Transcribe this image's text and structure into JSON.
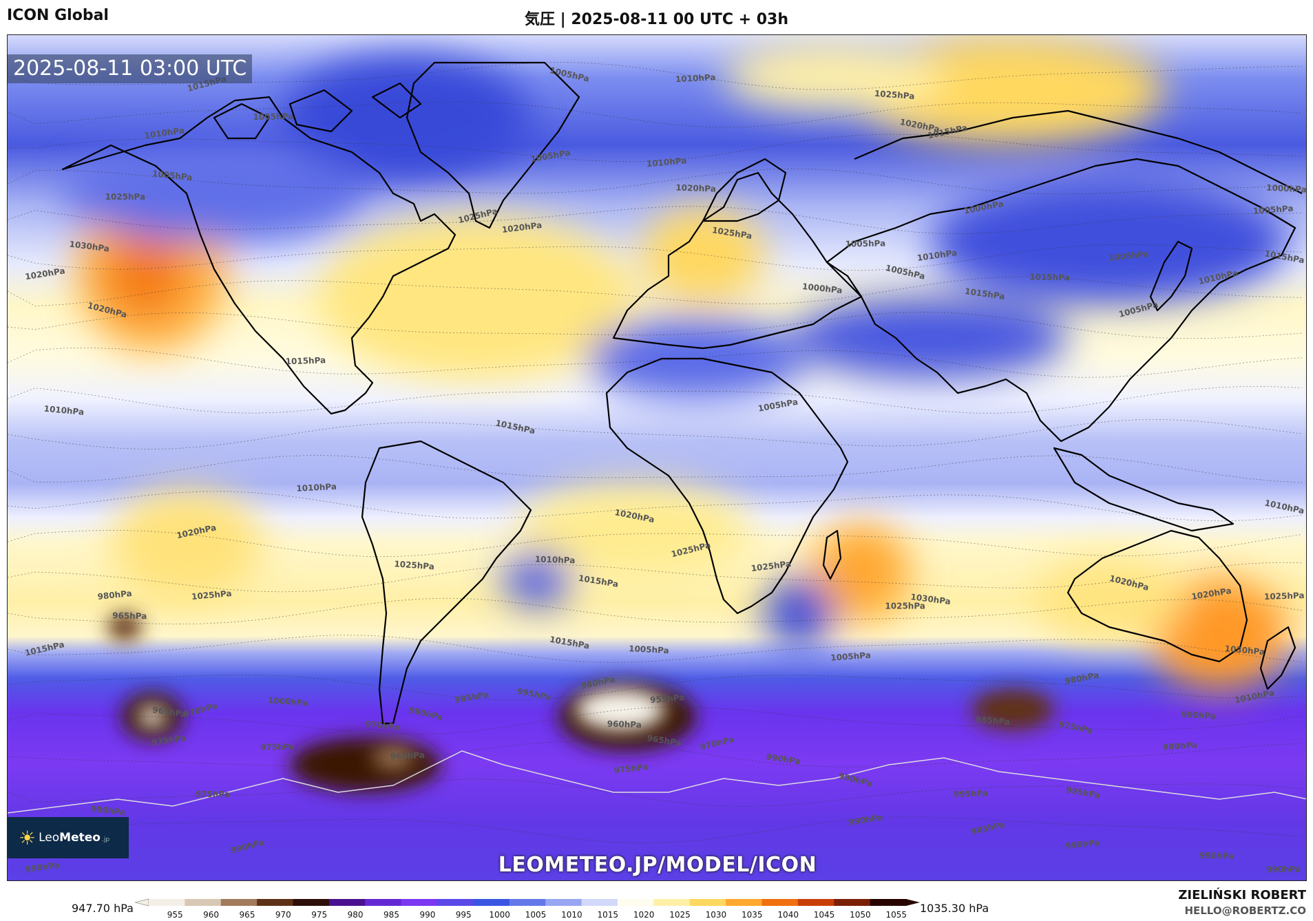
{
  "header": {
    "model_name": "ICON Global",
    "title": "気圧 | 2025-08-11 00 UTC + 03h"
  },
  "map": {
    "timestamp": "2025-08-11 03:00 UTC",
    "site_url": "LEOMETEO.JP/MODEL/ICON",
    "logo": {
      "brand_light": "Leo",
      "brand_bold": "Meteo",
      "suffix": ".jp",
      "icon": "sun-icon"
    },
    "isobar_labels": [
      {
        "text": "1015hPa",
        "lon": -130,
        "lat": 78
      },
      {
        "text": "1010hPa",
        "lon": -142,
        "lat": 68
      },
      {
        "text": "1005hPa",
        "lon": -112,
        "lat": 72
      },
      {
        "text": "1005hPa",
        "lon": -140,
        "lat": 60
      },
      {
        "text": "1005hPa",
        "lon": -30,
        "lat": 82
      },
      {
        "text": "1005hPa",
        "lon": -35,
        "lat": 63
      },
      {
        "text": "1010hPa",
        "lon": 5,
        "lat": 80
      },
      {
        "text": "1025hPa",
        "lon": 60,
        "lat": 77
      },
      {
        "text": "1020hPa",
        "lon": 67,
        "lat": 71
      },
      {
        "text": "1015hPa",
        "lon": 75,
        "lat": 68
      },
      {
        "text": "1010hPa",
        "lon": -3,
        "lat": 62
      },
      {
        "text": "1020hPa",
        "lon": 5,
        "lat": 57
      },
      {
        "text": "1025hPa",
        "lon": 15,
        "lat": 48
      },
      {
        "text": "1025hPa",
        "lon": -55,
        "lat": 50
      },
      {
        "text": "1020hPa",
        "lon": -43,
        "lat": 48
      },
      {
        "text": "1025hPa",
        "lon": -153,
        "lat": 55
      },
      {
        "text": "1030hPa",
        "lon": -163,
        "lat": 45
      },
      {
        "text": "1020hPa",
        "lon": -158,
        "lat": 32
      },
      {
        "text": "1020hPa",
        "lon": -175,
        "lat": 38
      },
      {
        "text": "1015hPa",
        "lon": -103,
        "lat": 20
      },
      {
        "text": "1010hPa",
        "lon": -170,
        "lat": 10
      },
      {
        "text": "1015hPa",
        "lon": -45,
        "lat": 7
      },
      {
        "text": "1000hPa",
        "lon": 85,
        "lat": 52
      },
      {
        "text": "1005hPa",
        "lon": 165,
        "lat": 52
      },
      {
        "text": "1000hPa",
        "lon": 178,
        "lat": 57
      },
      {
        "text": "1015hPa",
        "lon": 168,
        "lat": 43
      },
      {
        "text": "1010hPa",
        "lon": 150,
        "lat": 37
      },
      {
        "text": "1005hPa",
        "lon": 125,
        "lat": 42
      },
      {
        "text": "1015hPa",
        "lon": 103,
        "lat": 38
      },
      {
        "text": "1015hPa",
        "lon": 85,
        "lat": 35
      },
      {
        "text": "1005hPa",
        "lon": 128,
        "lat": 30
      },
      {
        "text": "1010hPa",
        "lon": 72,
        "lat": 42
      },
      {
        "text": "1005hPa",
        "lon": 52,
        "lat": 45
      },
      {
        "text": "1000hPa",
        "lon": 40,
        "lat": 36
      },
      {
        "text": "1005hPa",
        "lon": 63,
        "lat": 40
      },
      {
        "text": "1005hPa",
        "lon": 28,
        "lat": 10
      },
      {
        "text": "1010hPa",
        "lon": -100,
        "lat": -7
      },
      {
        "text": "1025hPa",
        "lon": -73,
        "lat": -23
      },
      {
        "text": "1020hPa",
        "lon": -12,
        "lat": -12
      },
      {
        "text": "1020hPa",
        "lon": -133,
        "lat": -17
      },
      {
        "text": "1025hPa",
        "lon": -129,
        "lat": -30
      },
      {
        "text": "1010hPa",
        "lon": -34,
        "lat": -22
      },
      {
        "text": "1015hPa",
        "lon": -22,
        "lat": -26
      },
      {
        "text": "1025hPa",
        "lon": 4,
        "lat": -21
      },
      {
        "text": "1025hPa",
        "lon": 26,
        "lat": -24
      },
      {
        "text": "1025hPa",
        "lon": 63,
        "lat": -32
      },
      {
        "text": "1030hPa",
        "lon": 70,
        "lat": -30
      },
      {
        "text": "1020hPa",
        "lon": 125,
        "lat": -26
      },
      {
        "text": "1020hPa",
        "lon": 148,
        "lat": -30
      },
      {
        "text": "1025hPa",
        "lon": 168,
        "lat": -30
      },
      {
        "text": "1030hPa",
        "lon": 157,
        "lat": -41
      },
      {
        "text": "1010hPa",
        "lon": 168,
        "lat": -10
      },
      {
        "text": "1010hPa",
        "lon": 160,
        "lat": -52
      },
      {
        "text": "1005hPa",
        "lon": 48,
        "lat": -43
      },
      {
        "text": "1005hPa",
        "lon": -8,
        "lat": -41
      },
      {
        "text": "1015hPa",
        "lon": -30,
        "lat": -39
      },
      {
        "text": "1015hPa",
        "lon": -175,
        "lat": -42
      },
      {
        "text": "980hPa",
        "lon": -155,
        "lat": -30
      },
      {
        "text": "965hPa",
        "lon": -151,
        "lat": -34
      },
      {
        "text": "965hPa",
        "lon": -140,
        "lat": -54
      },
      {
        "text": "970hPa",
        "lon": -131,
        "lat": -55
      },
      {
        "text": "975hPa",
        "lon": -140,
        "lat": -61
      },
      {
        "text": "975hPa",
        "lon": -110,
        "lat": -62
      },
      {
        "text": "970hPa",
        "lon": -81,
        "lat": -57
      },
      {
        "text": "980hPa",
        "lon": -69,
        "lat": -54
      },
      {
        "text": "985hPa",
        "lon": -56,
        "lat": -52
      },
      {
        "text": "965hPa",
        "lon": -74,
        "lat": -64
      },
      {
        "text": "1000hPa",
        "lon": -108,
        "lat": -52
      },
      {
        "text": "995hPa",
        "lon": -39,
        "lat": -50
      },
      {
        "text": "980hPa",
        "lon": -21,
        "lat": -49
      },
      {
        "text": "955hPa",
        "lon": -2,
        "lat": -52
      },
      {
        "text": "960hPa",
        "lon": -14,
        "lat": -57
      },
      {
        "text": "965hPa",
        "lon": -3,
        "lat": -60
      },
      {
        "text": "970hPa",
        "lon": 12,
        "lat": -62
      },
      {
        "text": "975hPa",
        "lon": -12,
        "lat": -67
      },
      {
        "text": "975hPa",
        "lon": -128,
        "lat": -72
      },
      {
        "text": "980hPa",
        "lon": -157,
        "lat": -75
      },
      {
        "text": "990hPa",
        "lon": 50,
        "lat": -68
      },
      {
        "text": "990hPa",
        "lon": 53,
        "lat": -78
      },
      {
        "text": "995hPa",
        "lon": 82,
        "lat": -72
      },
      {
        "text": "985hPa",
        "lon": 88,
        "lat": -56
      },
      {
        "text": "975hPa",
        "lon": 111,
        "lat": -57
      },
      {
        "text": "980hPa",
        "lon": 113,
        "lat": -48
      },
      {
        "text": "980hPa",
        "lon": 140,
        "lat": -62
      },
      {
        "text": "990hPa",
        "lon": 145,
        "lat": -55
      },
      {
        "text": "995hPa",
        "lon": 113,
        "lat": -71
      },
      {
        "text": "985hPa",
        "lon": 87,
        "lat": -80
      },
      {
        "text": "990hPa",
        "lon": 113,
        "lat": -83
      },
      {
        "text": "990hPa",
        "lon": 150,
        "lat": -85
      },
      {
        "text": "990hPa",
        "lon": 30,
        "lat": -64
      },
      {
        "text": "990hPa",
        "lon": -118,
        "lat": -84
      },
      {
        "text": "990hPa",
        "lon": -175,
        "lat": -88
      },
      {
        "text": "990hPa",
        "lon": 173,
        "lat": -88
      }
    ]
  },
  "legend": {
    "min_label": "947.70 hPa",
    "max_label": "1035.30 hPa",
    "ticks": [
      "955",
      "960",
      "965",
      "970",
      "975",
      "980",
      "985",
      "990",
      "995",
      "1000",
      "1005",
      "1010",
      "1015",
      "1020",
      "1025",
      "1030",
      "1035",
      "1040",
      "1045",
      "1050",
      "1055"
    ],
    "colors": [
      "#f4efe6",
      "#d8c7b4",
      "#a17b5c",
      "#5e3218",
      "#2e0e08",
      "#4a1290",
      "#6428d4",
      "#7a38f2",
      "#5a48e8",
      "#3a55e2",
      "#6478ea",
      "#98a6f2",
      "#d2d8fa",
      "#fffdf0",
      "#fff0a8",
      "#ffd860",
      "#ffa830",
      "#f07010",
      "#c84008",
      "#7a2004",
      "#280400"
    ]
  },
  "credits": {
    "author": "ZIELIŃSKI ROBERT",
    "email": "HELLO@ROBERTZ.CO"
  }
}
